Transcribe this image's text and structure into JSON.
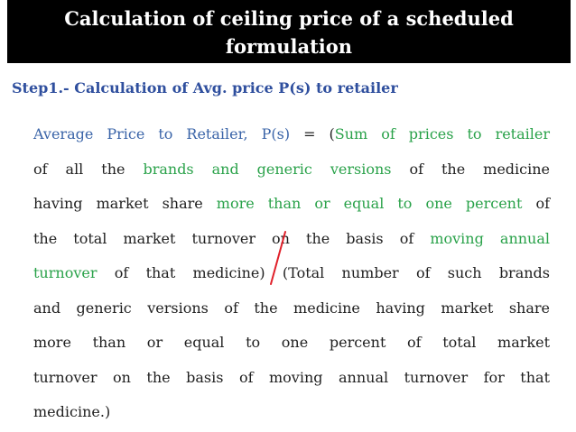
{
  "title": {
    "line1": "Calculation of ceiling price of a scheduled",
    "line2": "formulation"
  },
  "subtitle": "Step1.- Calculation of Avg. price P(s) to retailer",
  "formula": {
    "l1_a": "Average Price to Retailer, P(s)",
    "l1_b": " = (",
    "l1_c": "Sum of prices to retailer",
    "l2_a": "of all the ",
    "l2_b": "brands and generic versions",
    "l2_c": " of the medicine",
    "l3_a": "having market share ",
    "l3_b": "more than or equal to one percent",
    "l3_c": " of",
    "l4_a": "the total market turnover on the basis of ",
    "l4_b": "moving annual",
    "l5_a": "turnover",
    "l5_b": " of that medicine) (Total number of such brands",
    "l6": "and generic versions of the medicine having market share",
    "l7": "more than or equal to one percent of total market",
    "l8": "turnover on the basis of moving annual turnover for that",
    "l9": "medicine.)"
  },
  "colors": {
    "title_bg": "#000000",
    "title_text": "#ffffff",
    "subtitle": "#2f4f9e",
    "body_text": "#1f1f1f",
    "highlight_blue": "#3a64a8",
    "highlight_green": "#2aa24a",
    "division_slash": "#e0202a"
  }
}
